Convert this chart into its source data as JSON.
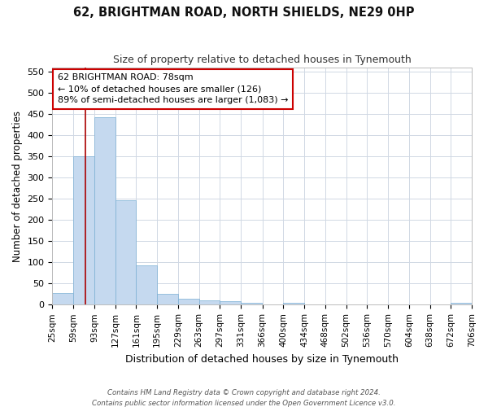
{
  "title": "62, BRIGHTMAN ROAD, NORTH SHIELDS, NE29 0HP",
  "subtitle": "Size of property relative to detached houses in Tynemouth",
  "xlabel": "Distribution of detached houses by size in Tynemouth",
  "ylabel": "Number of detached properties",
  "footnote1": "Contains HM Land Registry data © Crown copyright and database right 2024.",
  "footnote2": "Contains public sector information licensed under the Open Government Licence v3.0.",
  "bar_color": "#c5d9ef",
  "bar_edge_color": "#7bafd4",
  "grid_color": "#d0d8e4",
  "vline_color": "#aa0000",
  "vline_x": 78,
  "annotation_line1": "62 BRIGHTMAN ROAD: 78sqm",
  "annotation_line2": "← 10% of detached houses are smaller (126)",
  "annotation_line3": "89% of semi-detached houses are larger (1,083) →",
  "annotation_box_color": "#ffffff",
  "annotation_box_edge": "#cc0000",
  "bins": [
    25,
    59,
    93,
    127,
    161,
    195,
    229,
    263,
    297,
    331,
    366,
    400,
    434,
    468,
    502,
    536,
    570,
    604,
    638,
    672,
    706
  ],
  "counts": [
    28,
    350,
    443,
    247,
    93,
    26,
    14,
    11,
    8,
    5,
    0,
    5,
    0,
    0,
    0,
    0,
    0,
    0,
    0,
    5
  ],
  "ylim": [
    0,
    560
  ],
  "yticks": [
    0,
    50,
    100,
    150,
    200,
    250,
    300,
    350,
    400,
    450,
    500,
    550
  ],
  "background_color": "#ffffff"
}
